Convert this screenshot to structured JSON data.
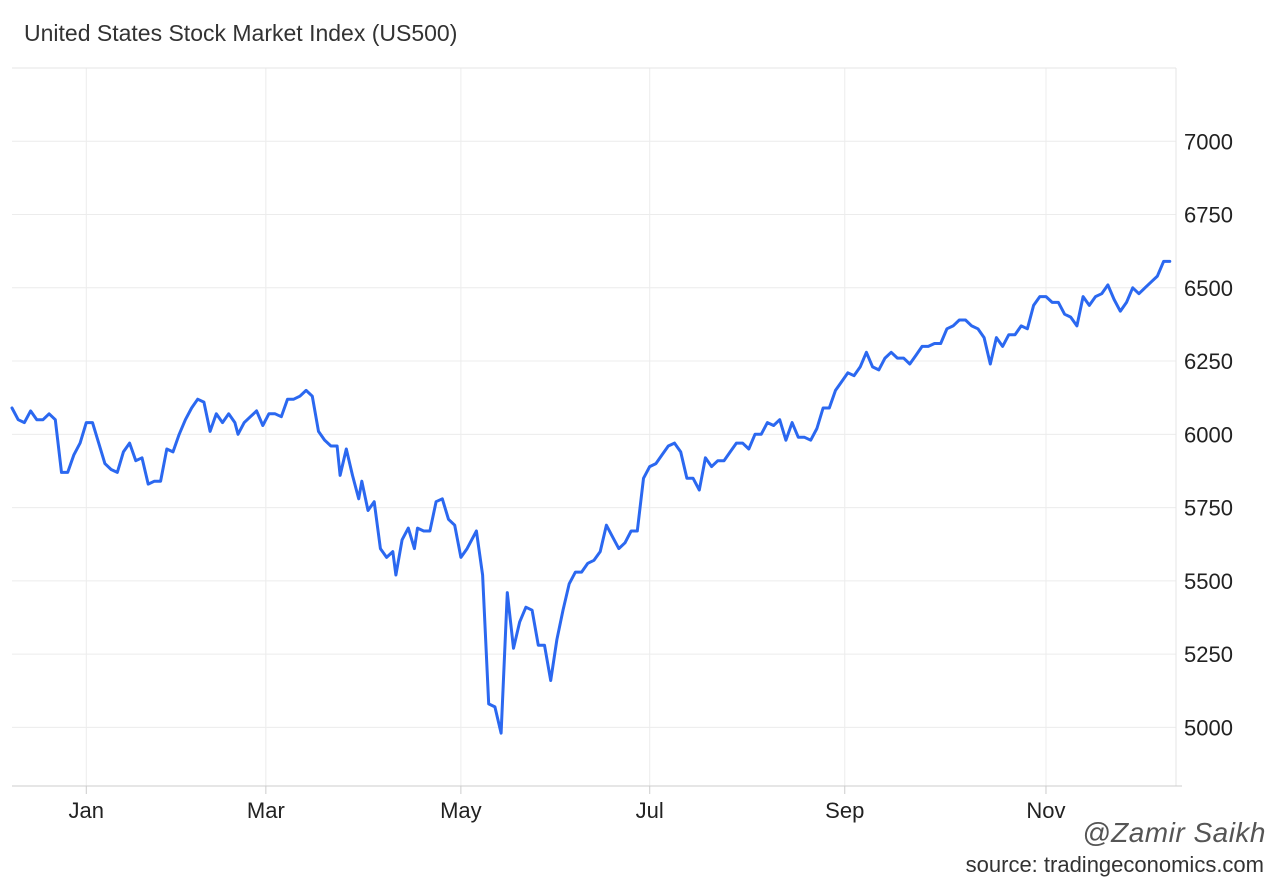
{
  "title": "United States Stock Market Index (US500)",
  "watermark": "@Zamir Saikh",
  "source": "source: tradingeconomics.com",
  "chart_data": {
    "type": "line",
    "ylim": [
      4800,
      7250
    ],
    "y_ticks": [
      5000,
      5250,
      5500,
      5750,
      6000,
      6250,
      6500,
      6750,
      7000
    ],
    "x_ticks": [
      {
        "label": "Jan",
        "day": 14
      },
      {
        "label": "Mar",
        "day": 72
      },
      {
        "label": "May",
        "day": 135
      },
      {
        "label": "Jul",
        "day": 196
      },
      {
        "label": "Sep",
        "day": 259
      },
      {
        "label": "Nov",
        "day": 324
      }
    ],
    "x_range": [
      -10,
      366
    ],
    "color": "#2b68f0",
    "grid": true,
    "series": [
      {
        "values": [
          [
            -10,
            6090
          ],
          [
            -8,
            6050
          ],
          [
            -6,
            6040
          ],
          [
            -4,
            6080
          ],
          [
            -2,
            6050
          ],
          [
            0,
            6050
          ],
          [
            2,
            6070
          ],
          [
            4,
            6050
          ],
          [
            6,
            5870
          ],
          [
            8,
            5870
          ],
          [
            10,
            5930
          ],
          [
            12,
            5970
          ],
          [
            14,
            6040
          ],
          [
            16,
            6040
          ],
          [
            18,
            5970
          ],
          [
            20,
            5900
          ],
          [
            22,
            5880
          ],
          [
            24,
            5870
          ],
          [
            26,
            5940
          ],
          [
            28,
            5970
          ],
          [
            30,
            5910
          ],
          [
            32,
            5920
          ],
          [
            34,
            5830
          ],
          [
            36,
            5840
          ],
          [
            38,
            5840
          ],
          [
            40,
            5950
          ],
          [
            42,
            5940
          ],
          [
            44,
            6000
          ],
          [
            46,
            6050
          ],
          [
            48,
            6090
          ],
          [
            50,
            6120
          ],
          [
            52,
            6110
          ],
          [
            54,
            6010
          ],
          [
            56,
            6070
          ],
          [
            58,
            6040
          ],
          [
            60,
            6070
          ],
          [
            62,
            6040
          ],
          [
            63,
            6000
          ],
          [
            65,
            6040
          ],
          [
            67,
            6060
          ],
          [
            69,
            6080
          ],
          [
            71,
            6030
          ],
          [
            73,
            6070
          ],
          [
            75,
            6070
          ],
          [
            77,
            6060
          ],
          [
            79,
            6120
          ],
          [
            81,
            6120
          ],
          [
            83,
            6130
          ],
          [
            85,
            6150
          ],
          [
            87,
            6130
          ],
          [
            89,
            6010
          ],
          [
            91,
            5980
          ],
          [
            93,
            5960
          ],
          [
            95,
            5960
          ],
          [
            96,
            5860
          ],
          [
            98,
            5950
          ],
          [
            100,
            5860
          ],
          [
            102,
            5780
          ],
          [
            103,
            5840
          ],
          [
            105,
            5740
          ],
          [
            107,
            5770
          ],
          [
            109,
            5610
          ],
          [
            111,
            5580
          ],
          [
            113,
            5600
          ],
          [
            114,
            5520
          ],
          [
            116,
            5640
          ],
          [
            118,
            5680
          ],
          [
            120,
            5610
          ],
          [
            121,
            5680
          ],
          [
            123,
            5670
          ],
          [
            125,
            5670
          ],
          [
            127,
            5770
          ],
          [
            129,
            5780
          ],
          [
            131,
            5710
          ],
          [
            133,
            5690
          ],
          [
            135,
            5580
          ],
          [
            137,
            5610
          ],
          [
            140,
            5670
          ],
          [
            142,
            5520
          ],
          [
            144,
            5080
          ],
          [
            146,
            5070
          ],
          [
            148,
            4980
          ],
          [
            150,
            5460
          ],
          [
            152,
            5270
          ],
          [
            154,
            5360
          ],
          [
            156,
            5410
          ],
          [
            158,
            5400
          ],
          [
            160,
            5280
          ],
          [
            162,
            5280
          ],
          [
            164,
            5160
          ],
          [
            166,
            5300
          ],
          [
            168,
            5400
          ],
          [
            170,
            5490
          ],
          [
            172,
            5530
          ],
          [
            174,
            5530
          ],
          [
            176,
            5560
          ],
          [
            178,
            5570
          ],
          [
            180,
            5600
          ],
          [
            182,
            5690
          ],
          [
            184,
            5650
          ],
          [
            186,
            5610
          ],
          [
            188,
            5630
          ],
          [
            190,
            5670
          ],
          [
            192,
            5670
          ],
          [
            194,
            5850
          ],
          [
            196,
            5890
          ],
          [
            198,
            5900
          ],
          [
            200,
            5930
          ],
          [
            202,
            5960
          ],
          [
            204,
            5970
          ],
          [
            206,
            5940
          ],
          [
            208,
            5850
          ],
          [
            210,
            5850
          ],
          [
            212,
            5810
          ],
          [
            214,
            5920
          ],
          [
            216,
            5890
          ],
          [
            218,
            5910
          ],
          [
            220,
            5910
          ],
          [
            222,
            5940
          ],
          [
            224,
            5970
          ],
          [
            226,
            5970
          ],
          [
            228,
            5950
          ],
          [
            230,
            6000
          ],
          [
            232,
            6000
          ],
          [
            234,
            6040
          ],
          [
            236,
            6030
          ],
          [
            238,
            6050
          ],
          [
            240,
            5980
          ],
          [
            242,
            6040
          ],
          [
            244,
            5990
          ],
          [
            246,
            5990
          ],
          [
            248,
            5980
          ],
          [
            250,
            6020
          ],
          [
            252,
            6090
          ],
          [
            254,
            6090
          ],
          [
            256,
            6150
          ],
          [
            258,
            6180
          ],
          [
            260,
            6210
          ],
          [
            262,
            6200
          ],
          [
            264,
            6230
          ],
          [
            266,
            6280
          ],
          [
            268,
            6230
          ],
          [
            270,
            6220
          ],
          [
            272,
            6260
          ],
          [
            274,
            6280
          ],
          [
            276,
            6260
          ],
          [
            278,
            6260
          ],
          [
            280,
            6240
          ],
          [
            282,
            6270
          ],
          [
            284,
            6300
          ],
          [
            286,
            6300
          ],
          [
            288,
            6310
          ],
          [
            290,
            6310
          ],
          [
            292,
            6360
          ],
          [
            294,
            6370
          ],
          [
            296,
            6390
          ],
          [
            298,
            6390
          ],
          [
            300,
            6370
          ],
          [
            302,
            6360
          ],
          [
            304,
            6330
          ],
          [
            306,
            6240
          ],
          [
            308,
            6330
          ],
          [
            310,
            6300
          ],
          [
            312,
            6340
          ],
          [
            314,
            6340
          ],
          [
            316,
            6370
          ],
          [
            318,
            6360
          ],
          [
            320,
            6440
          ],
          [
            322,
            6470
          ],
          [
            324,
            6470
          ],
          [
            326,
            6450
          ],
          [
            328,
            6450
          ],
          [
            330,
            6410
          ],
          [
            332,
            6400
          ],
          [
            334,
            6370
          ],
          [
            336,
            6470
          ],
          [
            338,
            6440
          ],
          [
            340,
            6470
          ],
          [
            342,
            6480
          ],
          [
            344,
            6510
          ],
          [
            346,
            6460
          ],
          [
            348,
            6420
          ],
          [
            350,
            6450
          ],
          [
            352,
            6500
          ],
          [
            354,
            6480
          ],
          [
            356,
            6500
          ],
          [
            358,
            6520
          ],
          [
            360,
            6540
          ],
          [
            362,
            6590
          ],
          [
            364,
            6590
          ]
        ]
      }
    ]
  }
}
